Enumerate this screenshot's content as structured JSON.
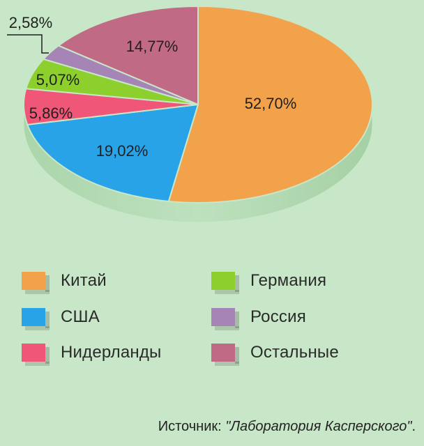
{
  "chart_data": {
    "type": "pie",
    "title": "",
    "slices": [
      {
        "label": "Китай",
        "value": 52.7,
        "label_text": "52,70%",
        "color": "#f3a24c"
      },
      {
        "label": "США",
        "value": 19.02,
        "label_text": "19,02%",
        "color": "#29a3e8"
      },
      {
        "label": "Нидерланды",
        "value": 5.86,
        "label_text": "5,86%",
        "color": "#ef5677"
      },
      {
        "label": "Германия",
        "value": 5.07,
        "label_text": "5,07%",
        "color": "#8dd02d"
      },
      {
        "label": "Россия",
        "value": 2.58,
        "label_text": "2,58%",
        "color": "#a784b6"
      },
      {
        "label": "Остальные",
        "value": 14.77,
        "label_text": "14,77%",
        "color": "#c06a86"
      }
    ],
    "legend_placement": "bottom"
  },
  "source": {
    "prefix": "Источник: ",
    "title": "\"Лаборатория Касперского\"",
    "suffix": "."
  }
}
